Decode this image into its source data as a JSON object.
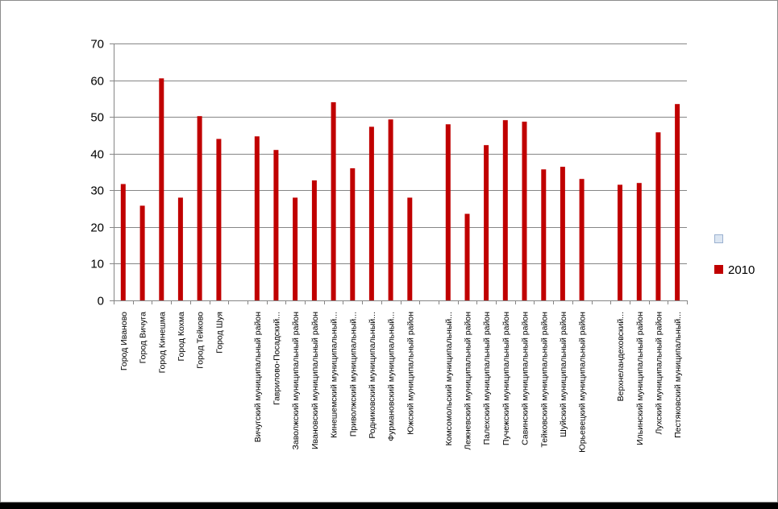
{
  "chart_data": {
    "type": "bar",
    "categories": [
      "Город Иваново",
      "Город Вичуга",
      "Город Кинешма",
      "Город Кохма",
      "Город Тейково",
      "Город Шуя",
      "",
      "Вичугский муниципальный район",
      "Гаврилово-Посадский...",
      "Заволжский муниципальный район",
      "Ивановский муниципальный район",
      "Кинешемский муниципальный...",
      "Приволжский муниципальный...",
      "Родниковский муниципальный...",
      "Фурмановский муниципальный...",
      "Южский муниципальный район",
      "",
      "Комсомольский муниципальный...",
      "Лежневский муниципальный район",
      "Палехский муниципальный район",
      "Пучежский муниципальный район",
      "Савинский муниципальный район",
      "Тейковский муниципальный район",
      "Шуйский муниципальный район",
      "Юрьевецкий муниципальный район",
      "",
      "Верхнеландеховский...",
      "Ильинский муниципальный район",
      "Лухский муниципальный район",
      "Пестяковский муниципальный..."
    ],
    "series": [
      {
        "name": "",
        "values": [
          null,
          null,
          null,
          null,
          null,
          null,
          null,
          null,
          null,
          null,
          null,
          null,
          null,
          null,
          null,
          null,
          null,
          null,
          null,
          null,
          null,
          null,
          null,
          null,
          null,
          null,
          null,
          null,
          null,
          null
        ]
      },
      {
        "name": "2010",
        "values": [
          31.7,
          25.8,
          60.5,
          28,
          50.2,
          44,
          null,
          44.7,
          41,
          28,
          32.7,
          54,
          36,
          47.3,
          49.3,
          28,
          null,
          48,
          23.6,
          42.3,
          49.1,
          48.7,
          35.7,
          36.4,
          33.1,
          null,
          31.5,
          32,
          45.8,
          53.5
        ]
      }
    ],
    "ylim": [
      0,
      70
    ],
    "yticks": [
      0,
      10,
      20,
      30,
      40,
      50,
      60,
      70
    ],
    "grid": true,
    "legend": "right",
    "colors": {
      "bar": "#c00000",
      "empty_series": "#dce6f2"
    }
  }
}
